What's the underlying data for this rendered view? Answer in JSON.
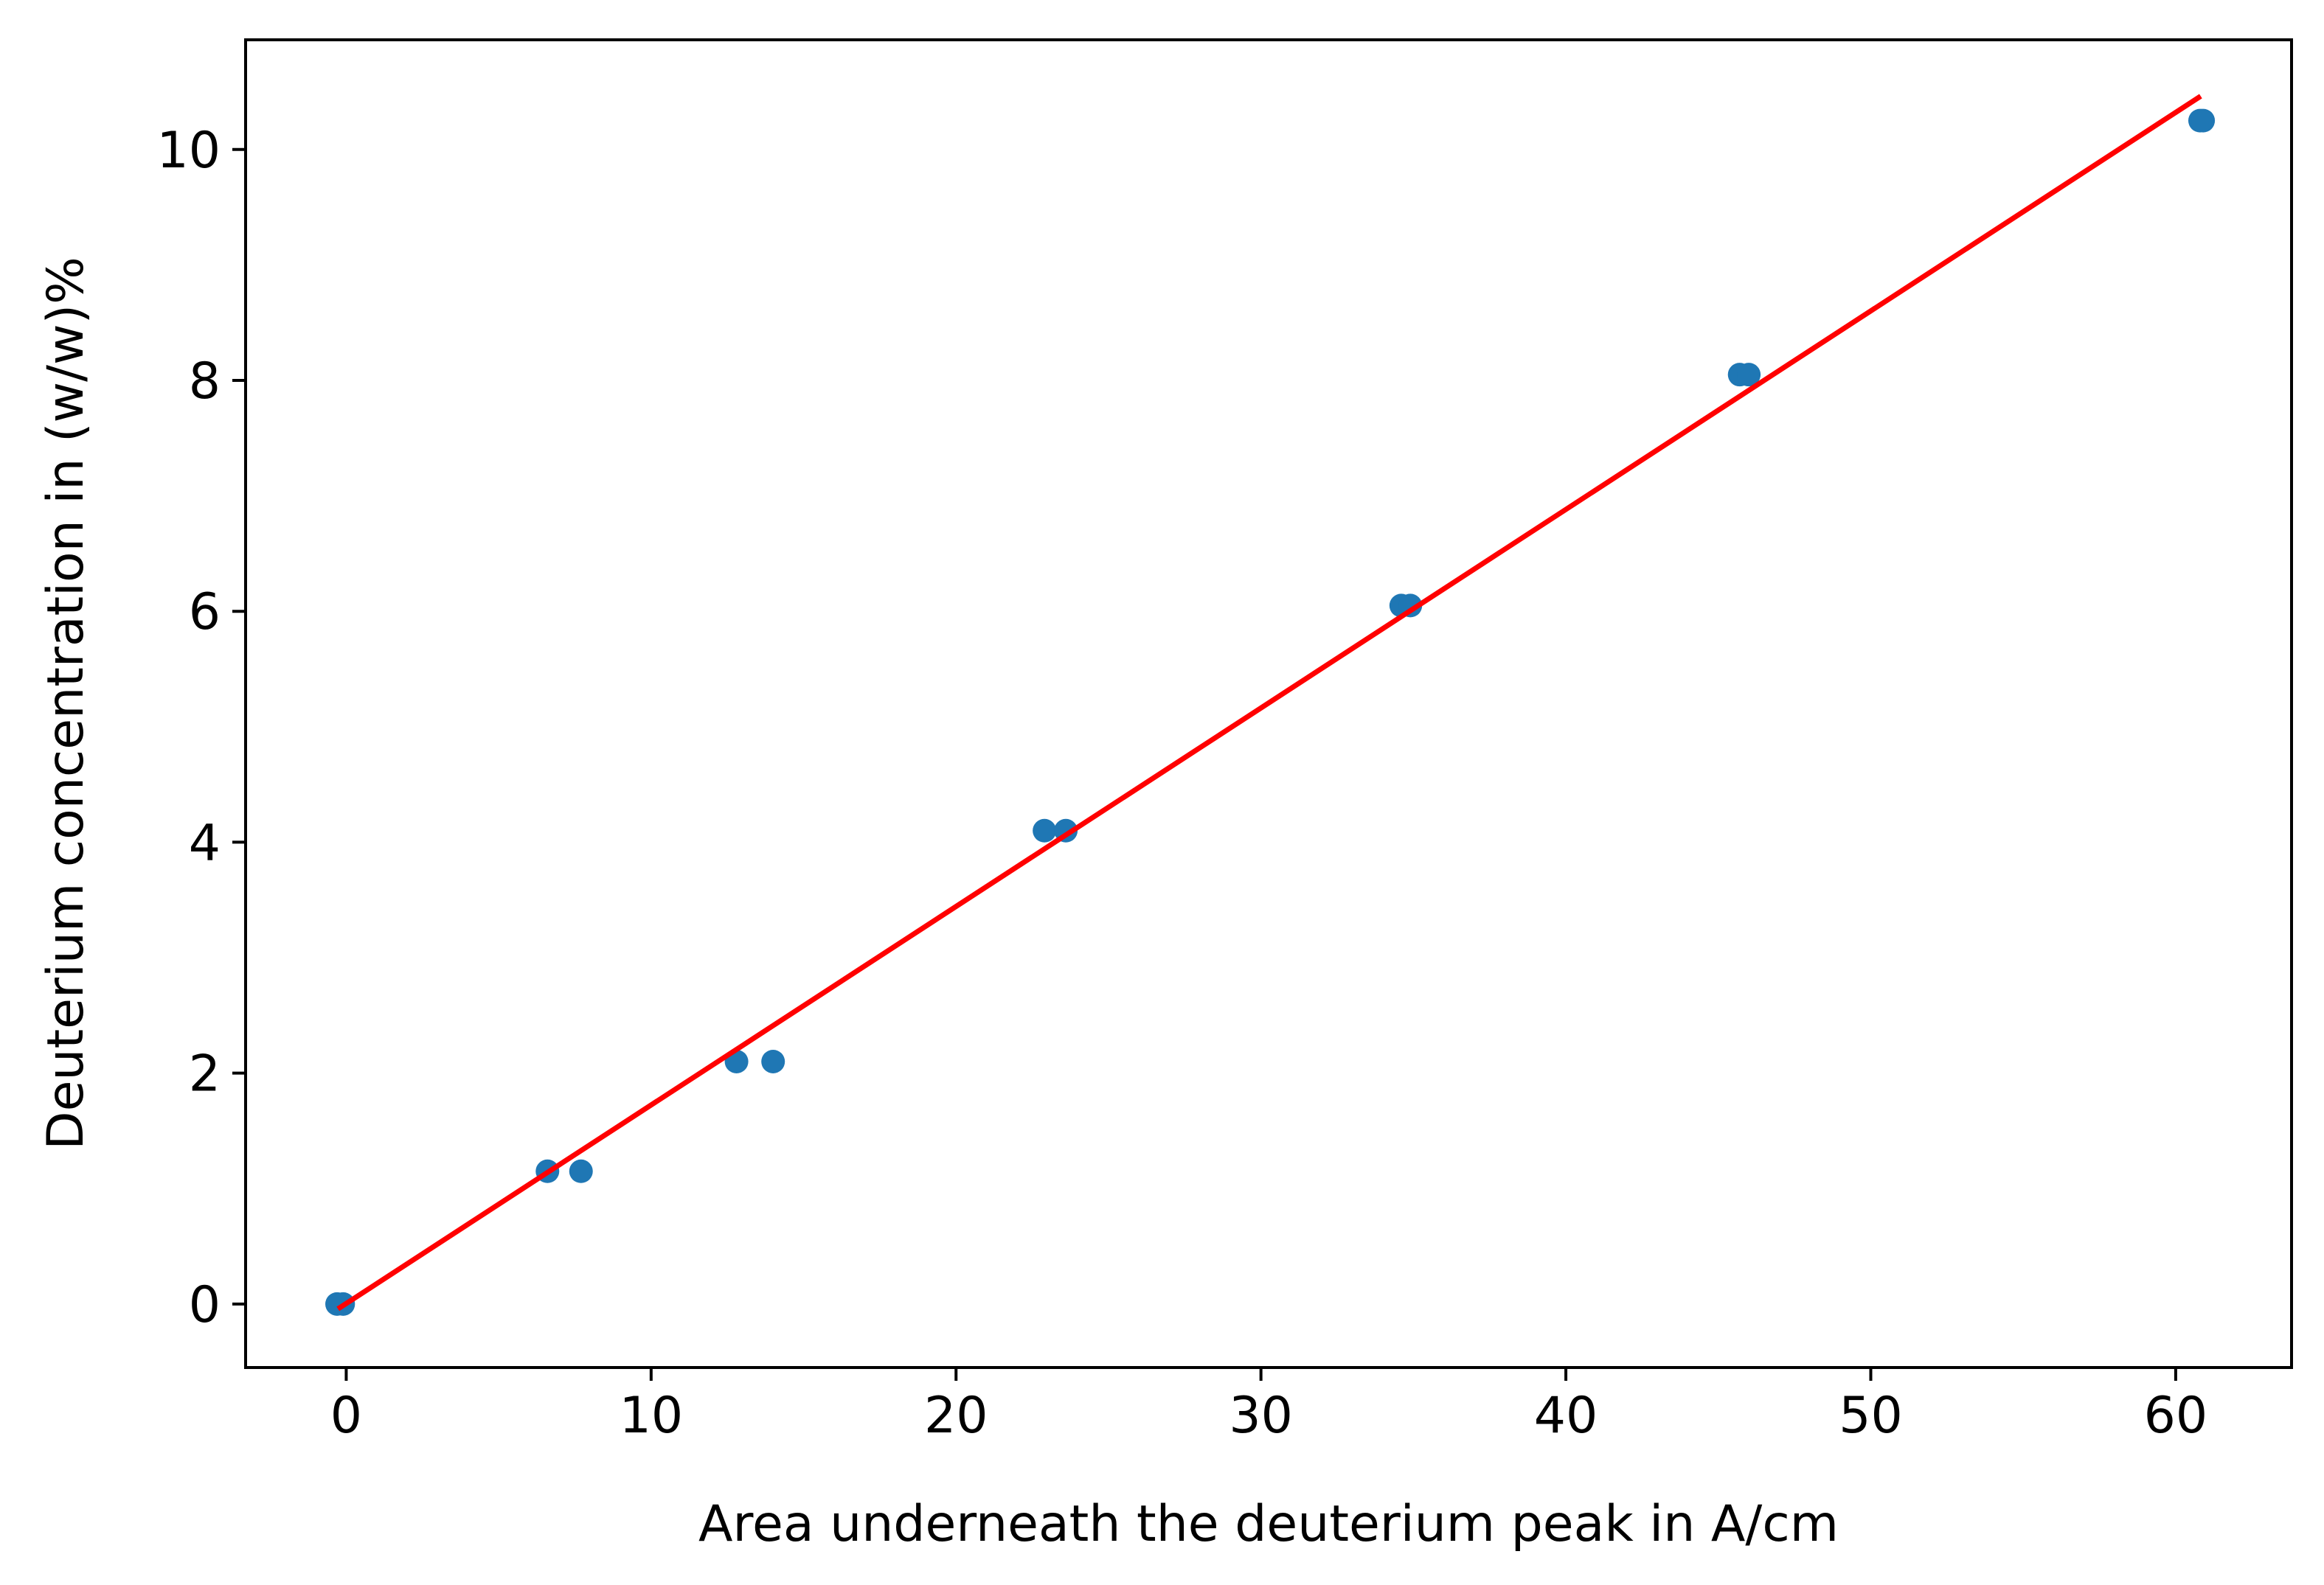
{
  "chart_data": {
    "type": "scatter",
    "title": "",
    "xlabel": "Area underneath the deuterium peak in A/cm",
    "ylabel": "Deuterium concentration in (w/w)%",
    "xlim": [
      -3.3,
      63.8
    ],
    "ylim": [
      -0.55,
      10.95
    ],
    "x_ticks": [
      0,
      10,
      20,
      30,
      40,
      50,
      60
    ],
    "y_ticks": [
      0,
      2,
      4,
      6,
      8,
      10
    ],
    "x_tick_labels": [
      "0",
      "10",
      "20",
      "30",
      "40",
      "50",
      "60"
    ],
    "y_tick_labels": [
      "0",
      "2",
      "4",
      "6",
      "8",
      "10"
    ],
    "grid": false,
    "series": [
      {
        "kind": "scatter",
        "color": "#1f77b4",
        "points": [
          {
            "x": -0.3,
            "y": 0.0
          },
          {
            "x": -0.1,
            "y": 0.0
          },
          {
            "x": 6.6,
            "y": 1.15
          },
          {
            "x": 7.7,
            "y": 1.15
          },
          {
            "x": 12.8,
            "y": 2.1
          },
          {
            "x": 14.0,
            "y": 2.1
          },
          {
            "x": 22.9,
            "y": 4.1
          },
          {
            "x": 23.6,
            "y": 4.1
          },
          {
            "x": 34.6,
            "y": 6.05
          },
          {
            "x": 34.9,
            "y": 6.05
          },
          {
            "x": 45.7,
            "y": 8.05
          },
          {
            "x": 46.0,
            "y": 8.05
          },
          {
            "x": 60.8,
            "y": 10.25
          },
          {
            "x": 60.9,
            "y": 10.25
          }
        ]
      },
      {
        "kind": "line",
        "color": "#ff0000",
        "x": [
          -0.2,
          60.75
        ],
        "y": [
          -0.03,
          10.45
        ]
      }
    ]
  }
}
